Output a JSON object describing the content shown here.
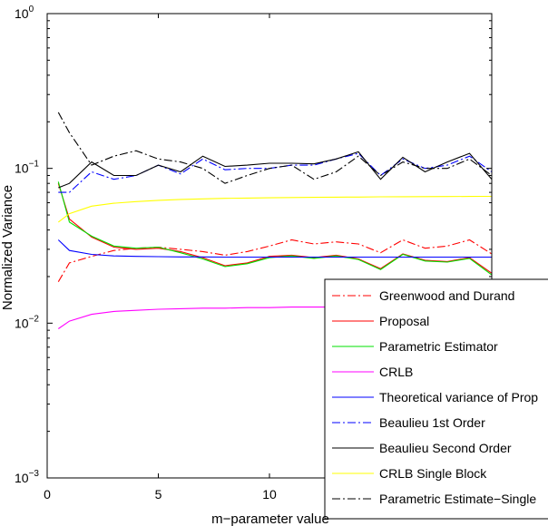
{
  "chart_data": {
    "type": "line",
    "title": "",
    "xlabel": "m−parameter value",
    "ylabel": "Normalized Variance",
    "xscale": "linear",
    "yscale": "log",
    "xlim": [
      0,
      20
    ],
    "ylim": [
      0.001,
      1
    ],
    "xticks": [
      {
        "value": 0,
        "label": "0"
      },
      {
        "value": 5,
        "label": "5"
      },
      {
        "value": 10,
        "label": "10"
      }
    ],
    "yticks": [
      {
        "value": 0.001,
        "base": "10",
        "exp": "−3"
      },
      {
        "value": 0.01,
        "base": "10",
        "exp": "−2"
      },
      {
        "value": 0.1,
        "base": "10",
        "exp": "−1"
      },
      {
        "value": 1,
        "base": "10",
        "exp": "0"
      }
    ],
    "grid": false,
    "legend_position": "bottom-right",
    "series": [
      {
        "name": "Greenwood and Durand",
        "color": "#ff0000",
        "dash": "dashdot",
        "x": [
          0.5,
          1,
          2,
          3,
          4,
          5,
          6,
          7,
          8,
          9,
          10,
          11,
          12,
          13,
          14,
          15,
          16,
          17,
          18,
          19,
          20
        ],
        "y": [
          0.0185,
          0.0245,
          0.027,
          0.0295,
          0.0305,
          0.031,
          0.03,
          0.029,
          0.0275,
          0.029,
          0.0315,
          0.0345,
          0.0325,
          0.0335,
          0.0325,
          0.0285,
          0.0345,
          0.0305,
          0.0315,
          0.0345,
          0.028
        ]
      },
      {
        "name": "Proposal",
        "color": "#ff0000",
        "dash": "solid",
        "x": [
          0.5,
          1,
          2,
          3,
          4,
          5,
          6,
          7,
          8,
          9,
          10,
          11,
          12,
          13,
          14,
          15,
          16,
          17,
          18,
          19,
          20
        ],
        "y": [
          0.08,
          0.047,
          0.036,
          0.031,
          0.03,
          0.0305,
          0.029,
          0.0265,
          0.0235,
          0.0245,
          0.027,
          0.0275,
          0.0265,
          0.0275,
          0.026,
          0.0225,
          0.028,
          0.0255,
          0.025,
          0.0265,
          0.021
        ]
      },
      {
        "name": "Parametric Estimator",
        "color": "#00e000",
        "dash": "solid",
        "x": [
          0.5,
          1,
          2,
          3,
          4,
          5,
          6,
          7,
          8,
          9,
          10,
          11,
          12,
          13,
          14,
          15,
          16,
          17,
          18,
          19,
          20
        ],
        "y": [
          0.082,
          0.045,
          0.0365,
          0.0315,
          0.0305,
          0.031,
          0.0285,
          0.026,
          0.0232,
          0.0242,
          0.0265,
          0.0272,
          0.0262,
          0.0272,
          0.0258,
          0.0222,
          0.0278,
          0.0252,
          0.0248,
          0.0262,
          0.0205
        ]
      },
      {
        "name": "CRLB",
        "color": "#ff00ff",
        "dash": "solid",
        "x": [
          0.5,
          1,
          2,
          3,
          4,
          5,
          6,
          7,
          8,
          9,
          10,
          11,
          12,
          13,
          14,
          15,
          16,
          17,
          18,
          19,
          20
        ],
        "y": [
          0.0092,
          0.0103,
          0.0114,
          0.0119,
          0.0121,
          0.0123,
          0.0124,
          0.0125,
          0.0125,
          0.0126,
          0.0126,
          0.0127,
          0.0127,
          0.0127,
          0.0128,
          0.0128,
          0.0128,
          0.0128,
          0.0128,
          0.0129,
          0.0129
        ]
      },
      {
        "name": "Theoretical variance of Prop",
        "color": "#0000ff",
        "dash": "solid",
        "x": [
          0.5,
          1,
          2,
          3,
          4,
          5,
          6,
          7,
          8,
          9,
          10,
          11,
          12,
          13,
          14,
          15,
          16,
          17,
          18,
          19,
          20
        ],
        "y": [
          0.0345,
          0.0295,
          0.0278,
          0.0272,
          0.027,
          0.0269,
          0.0268,
          0.0268,
          0.0267,
          0.0267,
          0.0267,
          0.0267,
          0.0267,
          0.0267,
          0.0267,
          0.0267,
          0.0267,
          0.0267,
          0.0267,
          0.0267,
          0.0267
        ]
      },
      {
        "name": "Beaulieu 1st Order",
        "color": "#0000ff",
        "dash": "dashdot",
        "x": [
          0.5,
          1,
          2,
          3,
          4,
          5,
          6,
          7,
          8,
          9,
          10,
          11,
          12,
          13,
          14,
          15,
          16,
          17,
          18,
          19,
          20
        ],
        "y": [
          0.07,
          0.07,
          0.095,
          0.085,
          0.09,
          0.105,
          0.092,
          0.115,
          0.098,
          0.1,
          0.1,
          0.105,
          0.105,
          0.115,
          0.125,
          0.09,
          0.115,
          0.1,
          0.105,
          0.12,
          0.095
        ]
      },
      {
        "name": "Beaulieu Second Order",
        "color": "#000000",
        "dash": "solid",
        "x": [
          0.5,
          1,
          2,
          3,
          4,
          5,
          6,
          7,
          8,
          9,
          10,
          11,
          12,
          13,
          14,
          15,
          16,
          17,
          18,
          19,
          20
        ],
        "y": [
          0.075,
          0.08,
          0.11,
          0.09,
          0.09,
          0.105,
          0.095,
          0.12,
          0.103,
          0.105,
          0.108,
          0.108,
          0.107,
          0.115,
          0.128,
          0.085,
          0.118,
          0.095,
          0.11,
          0.125,
          0.085
        ]
      },
      {
        "name": "CRLB Single Block",
        "color": "#ffff00",
        "dash": "solid",
        "x": [
          0.5,
          1,
          2,
          3,
          4,
          5,
          6,
          7,
          8,
          9,
          10,
          11,
          12,
          13,
          14,
          15,
          16,
          17,
          18,
          19,
          20
        ],
        "y": [
          0.045,
          0.051,
          0.057,
          0.0595,
          0.061,
          0.0622,
          0.063,
          0.0635,
          0.064,
          0.0643,
          0.0646,
          0.0648,
          0.065,
          0.0652,
          0.0653,
          0.0655,
          0.0656,
          0.0657,
          0.0658,
          0.0659,
          0.066
        ]
      },
      {
        "name": "Parametric Estimate−Single",
        "color": "#000000",
        "dash": "dashdot",
        "x": [
          0.5,
          1,
          2,
          3,
          4,
          5,
          6,
          7,
          8,
          9,
          10,
          11,
          12,
          13,
          14,
          15,
          16,
          17,
          18,
          19,
          20
        ],
        "y": [
          0.23,
          0.17,
          0.105,
          0.12,
          0.13,
          0.115,
          0.11,
          0.1,
          0.08,
          0.09,
          0.1,
          0.105,
          0.085,
          0.095,
          0.12,
          0.09,
          0.11,
          0.1,
          0.1,
          0.115,
          0.09
        ]
      }
    ]
  }
}
